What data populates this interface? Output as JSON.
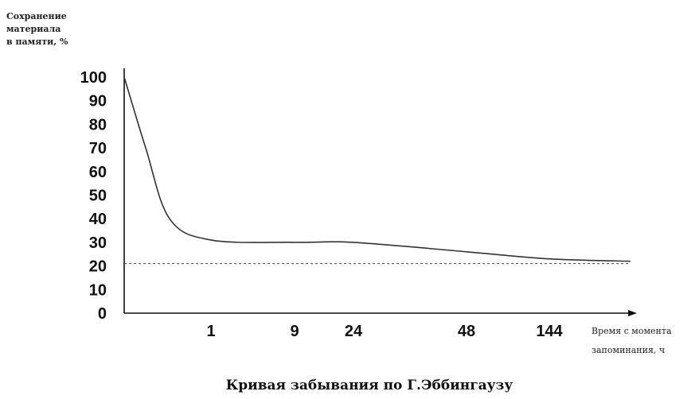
{
  "chart_data": {
    "type": "line",
    "title": "Кривая забывания по Г.Эббингаузу",
    "ylabel_lines": [
      "Сохранение",
      "материала",
      "в памяти, %"
    ],
    "xlabel_lines": [
      "Время с момента",
      "запоминания, ч"
    ],
    "y_ticks": [
      "100",
      "90",
      "80",
      "70",
      "60",
      "50",
      "40",
      "30",
      "20",
      "10",
      "0"
    ],
    "x_ticks": [
      "1",
      "9",
      "24",
      "48",
      "144"
    ],
    "ylim": [
      0,
      100
    ],
    "grid": false,
    "legend": "none",
    "series": [
      {
        "x": [
          "0",
          "0.33",
          "0.67",
          "1",
          "9",
          "24",
          "48",
          "144",
          "end"
        ],
        "values": [
          100,
          70,
          40,
          31,
          30,
          30,
          26,
          23,
          22
        ]
      }
    ],
    "reference_line": {
      "y": 21,
      "style": "dashed"
    },
    "colors": {
      "line": "#333333",
      "axis": "#111111",
      "reference": "#444444"
    }
  }
}
